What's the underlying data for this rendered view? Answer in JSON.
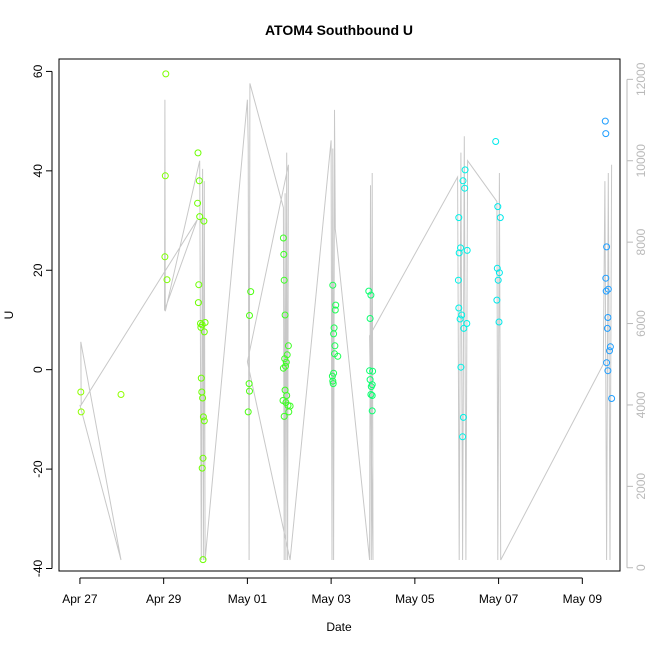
{
  "chart_data": {
    "type": "scatter",
    "title": "ATOM4 Southbound U",
    "xlabel": "Date",
    "ylabel": "U",
    "x_unit": "days from Apr 27",
    "xlim": [
      -0.5,
      12.9
    ],
    "ylim": [
      -40.5,
      62.5
    ],
    "y2lim": [
      -80,
      12500
    ],
    "x_ticks": [
      {
        "value": 0,
        "label": "Apr 27"
      },
      {
        "value": 2,
        "label": "Apr 29"
      },
      {
        "value": 4,
        "label": "May 01"
      },
      {
        "value": 6,
        "label": "May 03"
      },
      {
        "value": 8,
        "label": "May 05"
      },
      {
        "value": 10,
        "label": "May 07"
      },
      {
        "value": 12,
        "label": "May 09"
      }
    ],
    "y_ticks": [
      -40,
      -20,
      0,
      20,
      40,
      60
    ],
    "y2_ticks": [
      0,
      2000,
      4000,
      6000,
      8000,
      10000,
      12000
    ],
    "points": [
      {
        "x": 0.02,
        "y": -4.5,
        "color": "#8fff00"
      },
      {
        "x": 0.03,
        "y": -8.5,
        "color": "#8fff00"
      },
      {
        "x": 0.98,
        "y": -5.0,
        "color": "#8fff00"
      },
      {
        "x": 2.05,
        "y": 59.5,
        "color": "#7cff00"
      },
      {
        "x": 2.04,
        "y": 39.0,
        "color": "#7cff00"
      },
      {
        "x": 2.03,
        "y": 22.7,
        "color": "#7cff00"
      },
      {
        "x": 2.08,
        "y": 18.1,
        "color": "#7cff00"
      },
      {
        "x": 2.82,
        "y": 43.6,
        "color": "#6cff00"
      },
      {
        "x": 2.85,
        "y": 38.0,
        "color": "#6cff00"
      },
      {
        "x": 2.81,
        "y": 33.5,
        "color": "#6cff00"
      },
      {
        "x": 2.86,
        "y": 30.8,
        "color": "#6cff00"
      },
      {
        "x": 2.96,
        "y": 29.9,
        "color": "#6cff00"
      },
      {
        "x": 2.84,
        "y": 17.1,
        "color": "#6cff00"
      },
      {
        "x": 2.83,
        "y": 13.5,
        "color": "#6cff00"
      },
      {
        "x": 2.88,
        "y": 9.3,
        "color": "#6cff00"
      },
      {
        "x": 2.89,
        "y": 8.5,
        "color": "#6cff00"
      },
      {
        "x": 2.92,
        "y": 9.0,
        "color": "#6cff00"
      },
      {
        "x": 2.99,
        "y": 9.5,
        "color": "#6cff00"
      },
      {
        "x": 2.97,
        "y": 7.6,
        "color": "#6cff00"
      },
      {
        "x": 2.9,
        "y": -1.7,
        "color": "#6cff00"
      },
      {
        "x": 2.91,
        "y": -4.5,
        "color": "#6cff00"
      },
      {
        "x": 2.93,
        "y": -5.7,
        "color": "#6cff00"
      },
      {
        "x": 2.95,
        "y": -9.5,
        "color": "#6cff00"
      },
      {
        "x": 2.97,
        "y": -10.3,
        "color": "#6cff00"
      },
      {
        "x": 2.94,
        "y": -17.8,
        "color": "#6cff00"
      },
      {
        "x": 2.92,
        "y": -19.8,
        "color": "#6cff00"
      },
      {
        "x": 2.94,
        "y": -38.2,
        "color": "#6cff00"
      },
      {
        "x": 4.08,
        "y": 15.7,
        "color": "#4cff10"
      },
      {
        "x": 4.05,
        "y": 10.9,
        "color": "#4cff10"
      },
      {
        "x": 4.04,
        "y": -2.8,
        "color": "#4cff10"
      },
      {
        "x": 4.05,
        "y": -4.3,
        "color": "#4cff10"
      },
      {
        "x": 4.02,
        "y": -8.5,
        "color": "#4cff10"
      },
      {
        "x": 4.86,
        "y": 26.5,
        "color": "#3cff22"
      },
      {
        "x": 4.87,
        "y": 23.2,
        "color": "#3cff22"
      },
      {
        "x": 4.88,
        "y": 18.0,
        "color": "#3cff22"
      },
      {
        "x": 4.9,
        "y": 11.0,
        "color": "#3cff22"
      },
      {
        "x": 4.98,
        "y": 4.8,
        "color": "#3cff22"
      },
      {
        "x": 4.95,
        "y": 3.0,
        "color": "#3cff22"
      },
      {
        "x": 4.89,
        "y": 2.2,
        "color": "#3cff22"
      },
      {
        "x": 4.93,
        "y": 1.5,
        "color": "#3cff22"
      },
      {
        "x": 4.86,
        "y": 0.3,
        "color": "#3cff22"
      },
      {
        "x": 4.91,
        "y": 0.7,
        "color": "#3cff22"
      },
      {
        "x": 4.9,
        "y": -4.1,
        "color": "#3cff22"
      },
      {
        "x": 4.94,
        "y": -5.2,
        "color": "#3cff22"
      },
      {
        "x": 4.85,
        "y": -6.2,
        "color": "#3cff22"
      },
      {
        "x": 4.92,
        "y": -6.6,
        "color": "#3cff22"
      },
      {
        "x": 4.97,
        "y": -7.2,
        "color": "#3cff22"
      },
      {
        "x": 5.02,
        "y": -7.3,
        "color": "#3cff22"
      },
      {
        "x": 4.99,
        "y": -8.5,
        "color": "#3cff22"
      },
      {
        "x": 4.88,
        "y": -9.4,
        "color": "#3cff22"
      },
      {
        "x": 6.04,
        "y": 17.0,
        "color": "#1cff55"
      },
      {
        "x": 6.11,
        "y": 13.0,
        "color": "#1cff55"
      },
      {
        "x": 6.1,
        "y": 12.0,
        "color": "#1cff55"
      },
      {
        "x": 6.07,
        "y": 8.4,
        "color": "#1cff55"
      },
      {
        "x": 6.06,
        "y": 7.2,
        "color": "#1cff55"
      },
      {
        "x": 6.09,
        "y": 4.8,
        "color": "#1cff55"
      },
      {
        "x": 6.08,
        "y": 3.2,
        "color": "#1cff55"
      },
      {
        "x": 6.16,
        "y": 2.7,
        "color": "#1cff55"
      },
      {
        "x": 6.06,
        "y": -0.7,
        "color": "#1cff55"
      },
      {
        "x": 6.03,
        "y": -1.3,
        "color": "#1cff55"
      },
      {
        "x": 6.04,
        "y": -2.3,
        "color": "#1cff55"
      },
      {
        "x": 6.05,
        "y": -2.8,
        "color": "#1cff55"
      },
      {
        "x": 6.9,
        "y": 15.8,
        "color": "#0cff70"
      },
      {
        "x": 6.95,
        "y": 15.0,
        "color": "#0cff70"
      },
      {
        "x": 6.93,
        "y": 10.3,
        "color": "#0cff70"
      },
      {
        "x": 6.92,
        "y": -0.2,
        "color": "#0cff70"
      },
      {
        "x": 6.99,
        "y": -0.3,
        "color": "#0cff70"
      },
      {
        "x": 6.93,
        "y": -2.0,
        "color": "#0cff70"
      },
      {
        "x": 6.98,
        "y": -3.0,
        "color": "#0cff70"
      },
      {
        "x": 6.96,
        "y": -3.4,
        "color": "#0cff70"
      },
      {
        "x": 6.95,
        "y": -5.0,
        "color": "#0cff70"
      },
      {
        "x": 6.98,
        "y": -5.2,
        "color": "#0cff70"
      },
      {
        "x": 6.98,
        "y": -8.3,
        "color": "#0cff70"
      },
      {
        "x": 9.2,
        "y": 40.2,
        "color": "#00f2e8"
      },
      {
        "x": 9.15,
        "y": 38.0,
        "color": "#00f2e8"
      },
      {
        "x": 9.19,
        "y": 36.5,
        "color": "#00f2e8"
      },
      {
        "x": 9.05,
        "y": 30.6,
        "color": "#00f2e8"
      },
      {
        "x": 9.09,
        "y": 24.5,
        "color": "#00f2e8"
      },
      {
        "x": 9.25,
        "y": 24.0,
        "color": "#00f2e8"
      },
      {
        "x": 9.06,
        "y": 23.5,
        "color": "#00f2e8"
      },
      {
        "x": 9.04,
        "y": 18.0,
        "color": "#00f2e8"
      },
      {
        "x": 9.05,
        "y": 12.4,
        "color": "#00f2e8"
      },
      {
        "x": 9.12,
        "y": 11.0,
        "color": "#00f2e8"
      },
      {
        "x": 9.08,
        "y": 10.2,
        "color": "#00f2e8"
      },
      {
        "x": 9.24,
        "y": 9.3,
        "color": "#00f2e8"
      },
      {
        "x": 9.17,
        "y": 8.3,
        "color": "#00f2e8"
      },
      {
        "x": 9.1,
        "y": 0.5,
        "color": "#00f2e8"
      },
      {
        "x": 9.16,
        "y": -9.6,
        "color": "#00f2e8"
      },
      {
        "x": 9.14,
        "y": -13.5,
        "color": "#00f2e8"
      },
      {
        "x": 9.93,
        "y": 45.9,
        "color": "#00e8ea"
      },
      {
        "x": 9.98,
        "y": 32.8,
        "color": "#00e8ea"
      },
      {
        "x": 10.04,
        "y": 30.6,
        "color": "#00e8ea"
      },
      {
        "x": 9.97,
        "y": 20.4,
        "color": "#00e8ea"
      },
      {
        "x": 10.02,
        "y": 19.5,
        "color": "#00e8ea"
      },
      {
        "x": 9.99,
        "y": 18.0,
        "color": "#00e8ea"
      },
      {
        "x": 9.96,
        "y": 14.0,
        "color": "#00e8ea"
      },
      {
        "x": 10.01,
        "y": 9.6,
        "color": "#00e8ea"
      },
      {
        "x": 12.55,
        "y": 50.0,
        "color": "#1f9eff"
      },
      {
        "x": 12.56,
        "y": 47.5,
        "color": "#1f9eff"
      },
      {
        "x": 12.58,
        "y": 24.7,
        "color": "#1f9eff"
      },
      {
        "x": 12.56,
        "y": 18.4,
        "color": "#1f9eff"
      },
      {
        "x": 12.57,
        "y": 15.8,
        "color": "#1f9eff"
      },
      {
        "x": 12.62,
        "y": 16.2,
        "color": "#1f9eff"
      },
      {
        "x": 12.61,
        "y": 10.5,
        "color": "#1f9eff"
      },
      {
        "x": 12.6,
        "y": 8.3,
        "color": "#1f9eff"
      },
      {
        "x": 12.67,
        "y": 4.6,
        "color": "#1f9eff"
      },
      {
        "x": 12.65,
        "y": 3.8,
        "color": "#1f9eff"
      },
      {
        "x": 12.58,
        "y": 1.4,
        "color": "#1f9eff"
      },
      {
        "x": 12.61,
        "y": -0.2,
        "color": "#1f9eff"
      },
      {
        "x": 12.7,
        "y": -5.8,
        "color": "#1f9eff"
      }
    ],
    "depth_series": {
      "name": "",
      "color": "#c8c8c8",
      "x": [
        0.0,
        0.98,
        0.02,
        0.03,
        2.8,
        2.02,
        2.03,
        2.04,
        2.86,
        2.9,
        2.93,
        2.95,
        2.97,
        2.99,
        4.0,
        4.02,
        4.04,
        4.06,
        4.86,
        4.88,
        4.9,
        4.92,
        4.94,
        4.96,
        4.98,
        4.0,
        5.02,
        6.0,
        6.02,
        6.04,
        6.06,
        6.08,
        6.1,
        6.92,
        6.94,
        6.96,
        6.98,
        7.0,
        6.92,
        9.02,
        9.06,
        9.1,
        9.14,
        9.18,
        9.22,
        9.26,
        9.96,
        9.98,
        10.02,
        10.05,
        12.5,
        12.54,
        12.58,
        12.62,
        12.66,
        12.7
      ],
      "y": [
        4000,
        190,
        5550,
        4000,
        8550,
        6320,
        11500,
        6300,
        10000,
        190,
        9800,
        190,
        9500,
        190,
        11500,
        10400,
        190,
        11900,
        8850,
        190,
        9200,
        190,
        10200,
        190,
        9900,
        5060,
        190,
        10500,
        190,
        10300,
        190,
        11250,
        8320,
        190,
        9400,
        190,
        9700,
        190,
        5700,
        9600,
        190,
        10200,
        190,
        10600,
        190,
        10000,
        9000,
        190,
        9700,
        190,
        5000,
        9500,
        190,
        9700,
        190,
        9900
      ]
    }
  }
}
